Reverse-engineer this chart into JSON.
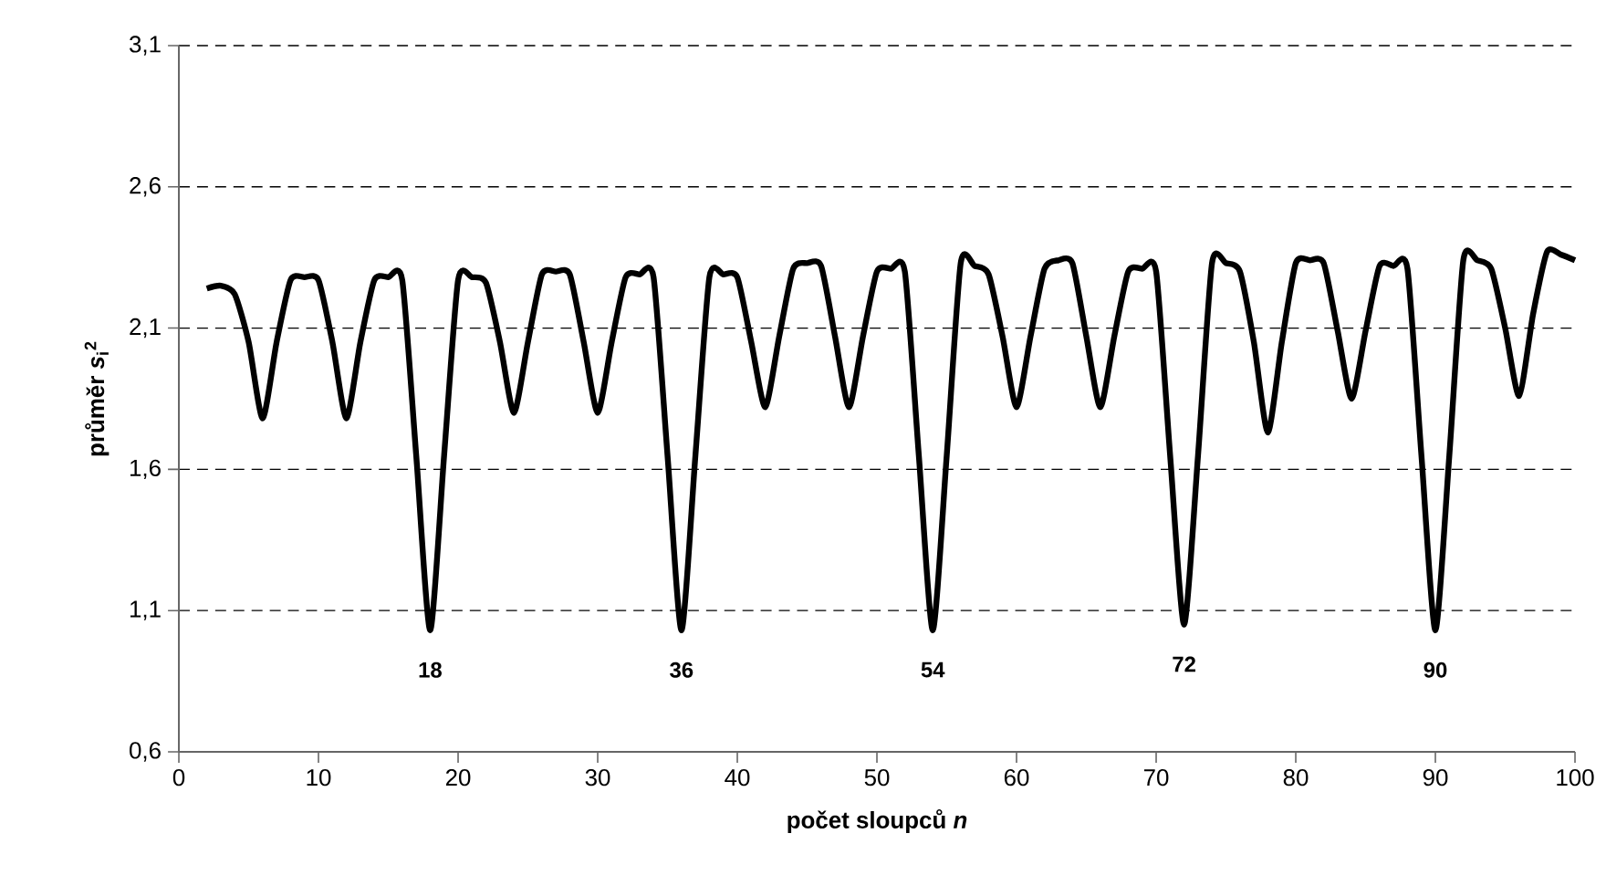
{
  "chart_data": {
    "type": "line",
    "xlabel": "počet sloupců *n*",
    "ylabel": "průměr *s*$_{i}$$^{2}$",
    "xlim": [
      0,
      100
    ],
    "xticks": [
      0,
      10,
      20,
      30,
      40,
      50,
      60,
      70,
      80,
      90,
      100
    ],
    "ylim": [
      0.6,
      3.1
    ],
    "yticks": [
      {
        "value": 0.6,
        "label": "0,6"
      },
      {
        "value": 1.1,
        "label": "1,1"
      },
      {
        "value": 1.6,
        "label": "1,6"
      },
      {
        "value": 2.1,
        "label": "2,1"
      },
      {
        "value": 2.6,
        "label": "2,6"
      },
      {
        "value": 3.1,
        "label": "3,1"
      }
    ],
    "grid": "y",
    "marker": "none",
    "line_style": "solid",
    "x": [
      2,
      3,
      4,
      5,
      6,
      7,
      8,
      9,
      10,
      11,
      12,
      13,
      14,
      15,
      16,
      17,
      18,
      19,
      20,
      21,
      22,
      23,
      24,
      25,
      26,
      27,
      28,
      29,
      30,
      31,
      32,
      33,
      34,
      35,
      36,
      37,
      38,
      39,
      40,
      41,
      42,
      43,
      44,
      45,
      46,
      47,
      48,
      49,
      50,
      51,
      52,
      53,
      54,
      55,
      56,
      57,
      58,
      59,
      60,
      61,
      62,
      63,
      64,
      65,
      66,
      67,
      68,
      69,
      70,
      71,
      72,
      73,
      74,
      75,
      76,
      77,
      78,
      79,
      80,
      81,
      82,
      83,
      84,
      85,
      86,
      87,
      88,
      89,
      90,
      91,
      92,
      93,
      94,
      95,
      96,
      97,
      98,
      99,
      100
    ],
    "series": [
      {
        "color": "#000000",
        "values": [
          2.24,
          2.25,
          2.22,
          2.05,
          1.78,
          2.05,
          2.27,
          2.28,
          2.27,
          2.05,
          1.78,
          2.05,
          2.27,
          2.28,
          2.27,
          1.65,
          1.03,
          1.65,
          2.27,
          2.28,
          2.26,
          2.05,
          1.8,
          2.05,
          2.29,
          2.3,
          2.29,
          2.05,
          1.8,
          2.05,
          2.28,
          2.29,
          2.28,
          1.65,
          1.03,
          1.65,
          2.28,
          2.29,
          2.28,
          2.05,
          1.82,
          2.07,
          2.31,
          2.33,
          2.32,
          2.07,
          1.82,
          2.07,
          2.3,
          2.31,
          2.3,
          1.65,
          1.03,
          1.65,
          2.33,
          2.32,
          2.29,
          2.07,
          1.82,
          2.07,
          2.31,
          2.34,
          2.33,
          2.07,
          1.82,
          2.07,
          2.3,
          2.31,
          2.3,
          1.65,
          1.05,
          1.65,
          2.33,
          2.33,
          2.3,
          2.05,
          1.73,
          2.05,
          2.33,
          2.34,
          2.33,
          2.09,
          1.85,
          2.09,
          2.32,
          2.32,
          2.31,
          1.65,
          1.03,
          1.65,
          2.34,
          2.34,
          2.31,
          2.1,
          1.86,
          2.15,
          2.37,
          2.36,
          2.34
        ]
      }
    ],
    "annotations": [
      {
        "text": "18",
        "x": 18,
        "y": 1.03
      },
      {
        "text": "36",
        "x": 36,
        "y": 1.03
      },
      {
        "text": "54",
        "x": 54,
        "y": 1.03
      },
      {
        "text": "72",
        "x": 72,
        "y": 1.05
      },
      {
        "text": "90",
        "x": 90,
        "y": 1.03
      }
    ]
  }
}
